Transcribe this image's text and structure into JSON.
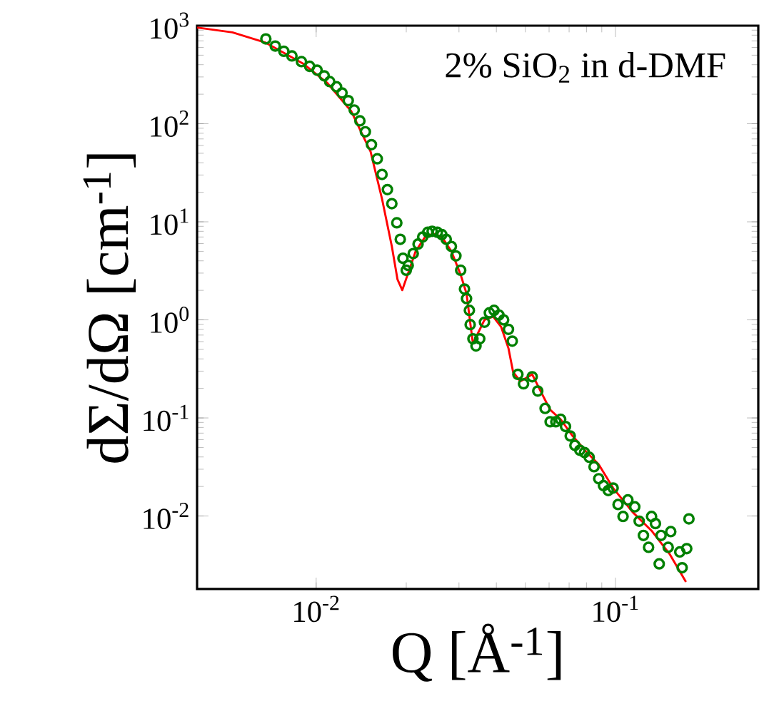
{
  "chart_data": {
    "type": "scatter",
    "xlabel": "Q [Å$^{-1}$]",
    "ylabel": "dΣ/dΩ [cm$^{-1}$]",
    "annotations": [
      "2% SiO$_{2}$ in d-DMF"
    ],
    "log": "xy",
    "xlim": [
      0.004,
      0.3
    ],
    "ylim": [
      0.0018,
      1000
    ],
    "xticks": [
      {
        "value": 0.01,
        "label": "10$^{-2}$"
      },
      {
        "value": 0.1,
        "label": "10$^{-1}$"
      }
    ],
    "yticks": [
      {
        "value": 0.01,
        "label": "10$^{-2}$"
      },
      {
        "value": 0.1,
        "label": "10$^{-1}$"
      },
      {
        "value": 1,
        "label": "10$^{0}$"
      },
      {
        "value": 10,
        "label": "10$^{1}$"
      },
      {
        "value": 100,
        "label": "10$^{2}$"
      },
      {
        "value": 1000,
        "label": "10$^{3}$"
      }
    ],
    "series": [
      {
        "marker": "circle",
        "color": "#008000",
        "x": [
          0.00679,
          0.0073,
          0.0078,
          0.0083,
          0.00893,
          0.00951,
          0.01007,
          0.01064,
          0.0111,
          0.0117,
          0.0122,
          0.0128,
          0.0134,
          0.014,
          0.0146,
          0.0153,
          0.016,
          0.0166,
          0.0173,
          0.0179,
          0.0186,
          0.0191,
          0.0195,
          0.02,
          0.0203,
          0.0211,
          0.0219,
          0.0227,
          0.0236,
          0.0244,
          0.0254,
          0.0263,
          0.0272,
          0.0283,
          0.0293,
          0.0304,
          0.0313,
          0.0318,
          0.0325,
          0.0327,
          0.0334,
          0.0342,
          0.0352,
          0.0365,
          0.0379,
          0.0393,
          0.0408,
          0.0423,
          0.0439,
          0.0452,
          0.0472,
          0.0493,
          0.0527,
          0.055,
          0.0582,
          0.0605,
          0.0632,
          0.0656,
          0.0681,
          0.0706,
          0.0732,
          0.076,
          0.0788,
          0.0817,
          0.0848,
          0.0879,
          0.0912,
          0.0946,
          0.0982,
          0.102,
          0.106,
          0.11,
          0.116,
          0.12,
          0.124,
          0.129,
          0.132,
          0.136,
          0.14,
          0.142,
          0.15,
          0.153,
          0.164,
          0.167,
          0.173,
          0.176
        ],
        "values": [
          733,
          620,
          548,
          491,
          430,
          385,
          352,
          308,
          269,
          238,
          206,
          172,
          138,
          107,
          82.8,
          61.2,
          43.9,
          30.4,
          21.3,
          15.3,
          9.77,
          6.63,
          4.25,
          3.21,
          3.59,
          4.74,
          5.93,
          7.0,
          7.83,
          8.0,
          7.83,
          7.41,
          6.63,
          5.61,
          4.49,
          3.21,
          2.06,
          1.65,
          1.25,
          0.895,
          0.641,
          0.542,
          0.641,
          0.946,
          1.18,
          1.25,
          1.12,
          1.0,
          0.8,
          0.607,
          0.278,
          0.223,
          0.263,
          0.188,
          0.125,
          0.0914,
          0.0914,
          0.0968,
          0.0818,
          0.0655,
          0.0525,
          0.0469,
          0.0444,
          0.0397,
          0.0318,
          0.024,
          0.0204,
          0.0182,
          0.0193,
          0.0131,
          0.00989,
          0.0146,
          0.0124,
          0.00885,
          0.00634,
          0.0048,
          0.00989,
          0.00837,
          0.00325,
          0.00634,
          0.0048,
          0.00693,
          0.0043,
          0.00297,
          0.00465,
          0.00935
        ]
      },
      {
        "type": "line",
        "marker": "none",
        "color": "#ff0000",
        "x": [
          0.004,
          0.00525,
          0.00679,
          0.00909,
          0.0109,
          0.0131,
          0.0152,
          0.0166,
          0.0179,
          0.0187,
          0.0194,
          0.0202,
          0.0215,
          0.0231,
          0.0246,
          0.0263,
          0.0283,
          0.0304,
          0.0318,
          0.0327,
          0.0334,
          0.0346,
          0.0365,
          0.039,
          0.0415,
          0.0439,
          0.0455,
          0.0481,
          0.0527,
          0.0562,
          0.0605,
          0.0656,
          0.0719,
          0.0803,
          0.0879,
          0.0982,
          0.114,
          0.132,
          0.152,
          0.172
        ],
        "values": [
          957,
          855,
          670,
          406,
          260,
          134,
          51.9,
          17.1,
          5.61,
          2.58,
          2.01,
          2.88,
          5.01,
          7.0,
          7.56,
          7.0,
          5.01,
          2.88,
          1.85,
          0.946,
          0.573,
          0.716,
          1.0,
          1.08,
          0.847,
          0.513,
          0.294,
          0.236,
          0.278,
          0.188,
          0.121,
          0.0968,
          0.0655,
          0.0444,
          0.0336,
          0.0193,
          0.011,
          0.00708,
          0.00406,
          0.00213
        ]
      }
    ]
  }
}
